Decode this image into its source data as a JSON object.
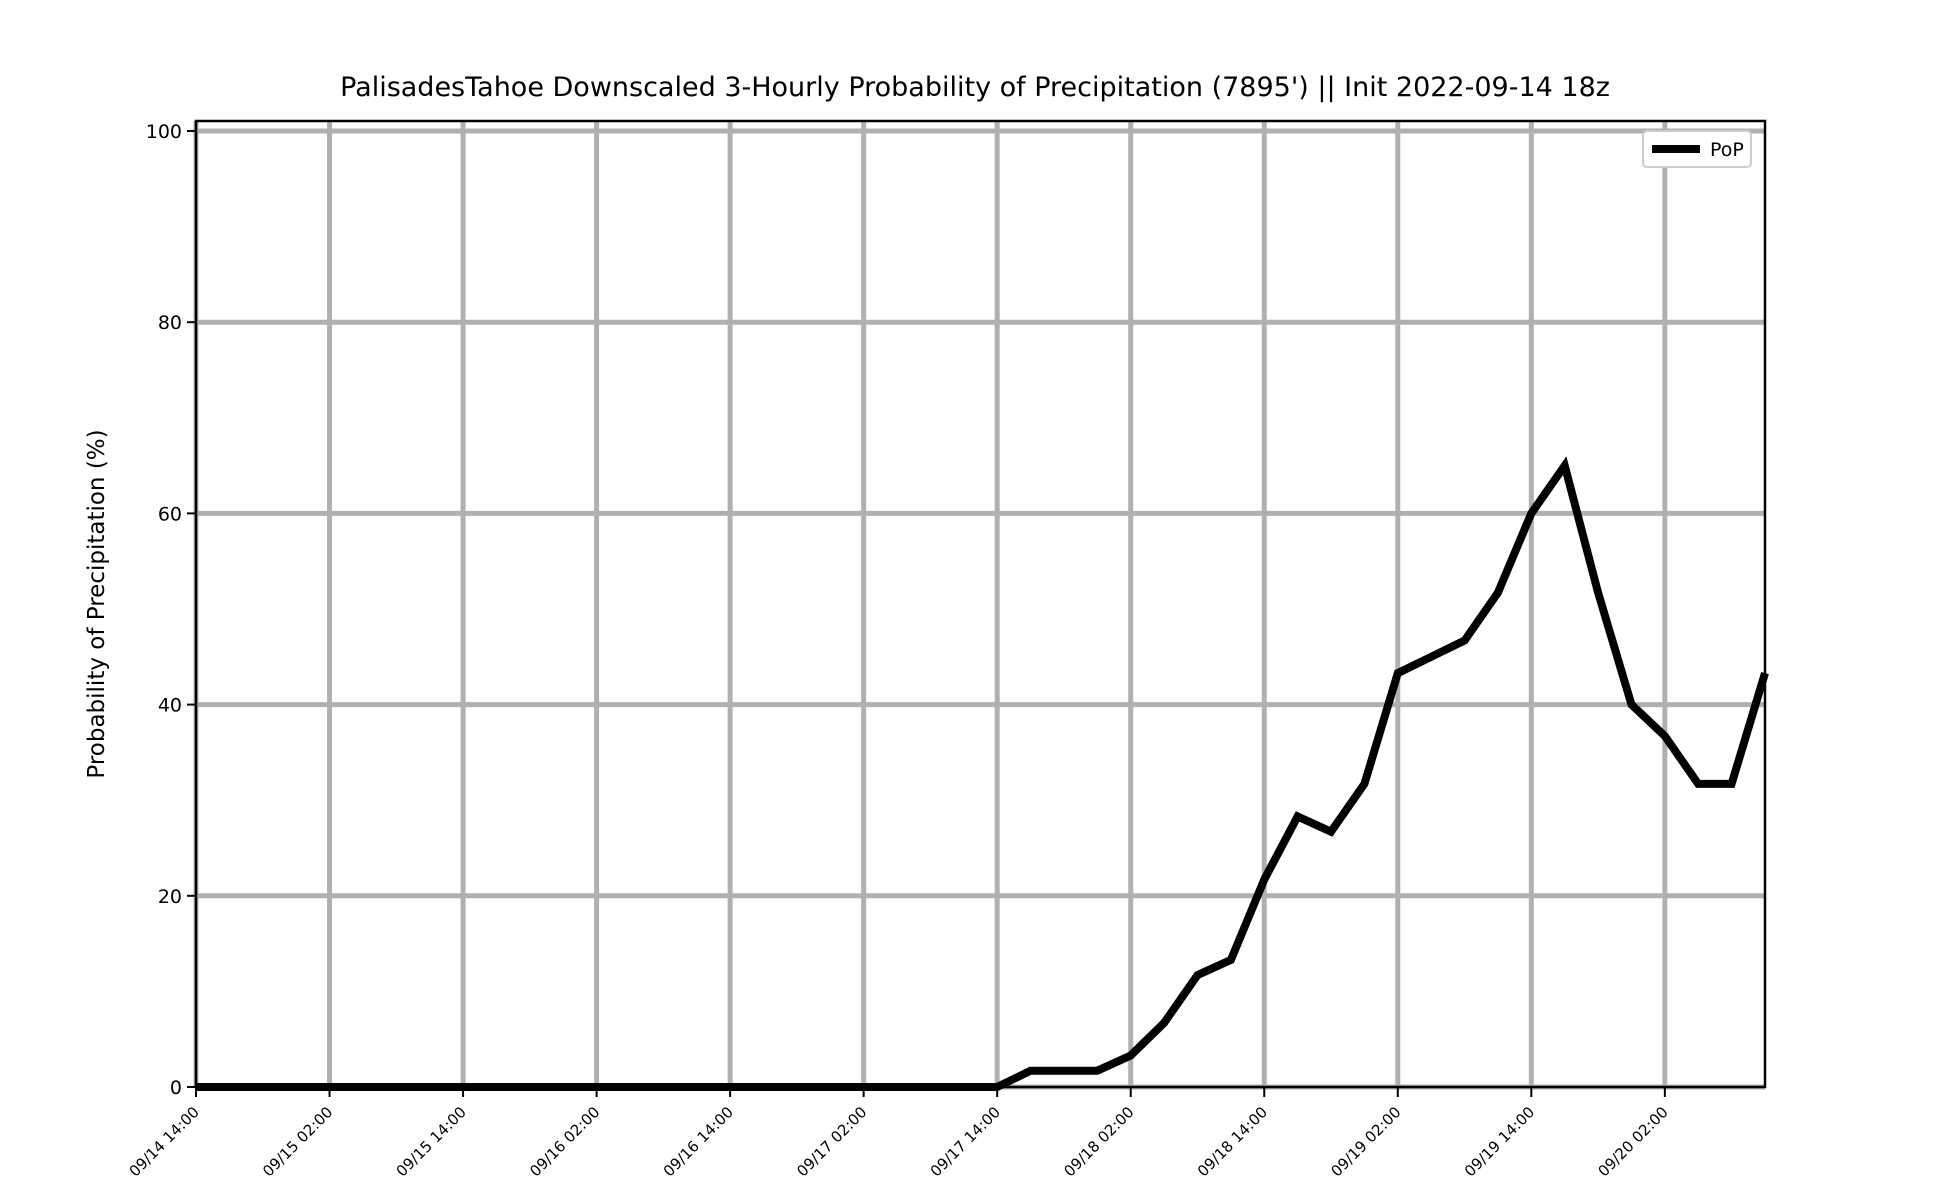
{
  "chart_data": {
    "type": "line",
    "title": "PalisadesTahoe Downscaled 3-Hourly Probability of Precipitation (7895') || Init 2022-09-14 18z",
    "xlabel": "",
    "ylabel": "Probability of Precipitation (%)",
    "ylim": [
      0,
      100
    ],
    "yticks": [
      0,
      20,
      40,
      60,
      80,
      100
    ],
    "xlim": [
      "2022-09-14 14:00",
      "2022-09-20 11:00"
    ],
    "xticks": [
      "09/14 14:00",
      "09/15 02:00",
      "09/15 14:00",
      "09/16 02:00",
      "09/16 14:00",
      "09/17 02:00",
      "09/17 14:00",
      "09/18 02:00",
      "09/18 14:00",
      "09/19 02:00",
      "09/19 14:00",
      "09/20 02:00"
    ],
    "grid": true,
    "legend_position": "upper right",
    "series": [
      {
        "name": "PoP",
        "color": "#000000",
        "x": [
          "2022-09-14 14:00",
          "2022-09-14 17:00",
          "2022-09-14 20:00",
          "2022-09-14 23:00",
          "2022-09-15 02:00",
          "2022-09-15 05:00",
          "2022-09-15 08:00",
          "2022-09-15 11:00",
          "2022-09-15 14:00",
          "2022-09-15 17:00",
          "2022-09-15 20:00",
          "2022-09-15 23:00",
          "2022-09-16 02:00",
          "2022-09-16 05:00",
          "2022-09-16 08:00",
          "2022-09-16 11:00",
          "2022-09-16 14:00",
          "2022-09-16 17:00",
          "2022-09-16 20:00",
          "2022-09-16 23:00",
          "2022-09-17 02:00",
          "2022-09-17 05:00",
          "2022-09-17 08:00",
          "2022-09-17 11:00",
          "2022-09-17 14:00",
          "2022-09-17 17:00",
          "2022-09-17 20:00",
          "2022-09-17 23:00",
          "2022-09-18 02:00",
          "2022-09-18 05:00",
          "2022-09-18 08:00",
          "2022-09-18 11:00",
          "2022-09-18 14:00",
          "2022-09-18 17:00",
          "2022-09-18 20:00",
          "2022-09-18 23:00",
          "2022-09-19 02:00",
          "2022-09-19 05:00",
          "2022-09-19 08:00",
          "2022-09-19 11:00",
          "2022-09-19 14:00",
          "2022-09-19 17:00",
          "2022-09-19 20:00",
          "2022-09-19 23:00",
          "2022-09-20 02:00",
          "2022-09-20 05:00",
          "2022-09-20 08:00",
          "2022-09-20 11:00"
        ],
        "values": [
          0,
          0,
          0,
          0,
          0,
          0,
          0,
          0,
          0,
          0,
          0,
          0,
          0,
          0,
          0,
          0,
          0,
          0,
          0,
          0,
          0,
          0,
          0,
          0,
          0,
          1.7,
          1.7,
          1.7,
          3.3,
          6.7,
          11.7,
          13.3,
          21.7,
          28.3,
          26.7,
          31.7,
          43.3,
          45,
          46.7,
          51.7,
          60,
          65,
          51.7,
          40,
          36.7,
          31.7,
          31.7,
          43.3
        ]
      }
    ]
  }
}
